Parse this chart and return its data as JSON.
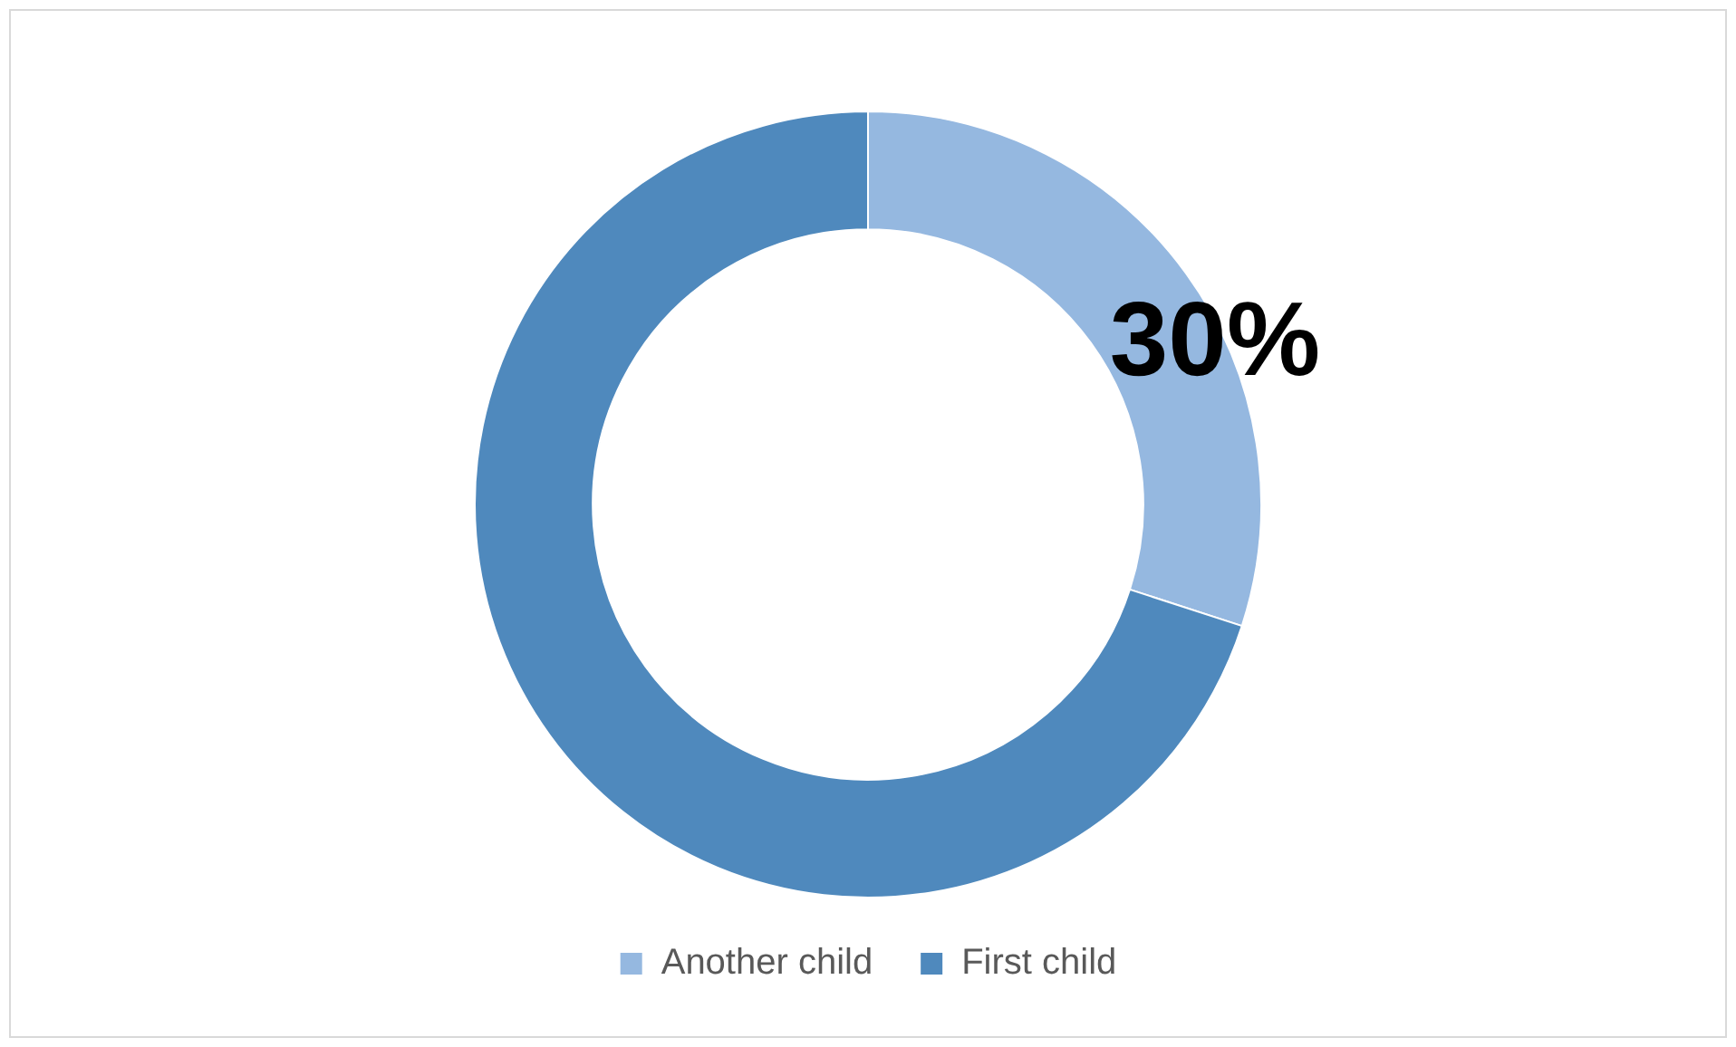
{
  "chart_data": {
    "type": "donut",
    "categories": [
      "Another child",
      "First child"
    ],
    "values": [
      30,
      70
    ],
    "colors": [
      "#95b8e0",
      "#4f89bd"
    ],
    "value_labels": [
      "30%",
      null
    ],
    "legend": "bottom"
  }
}
